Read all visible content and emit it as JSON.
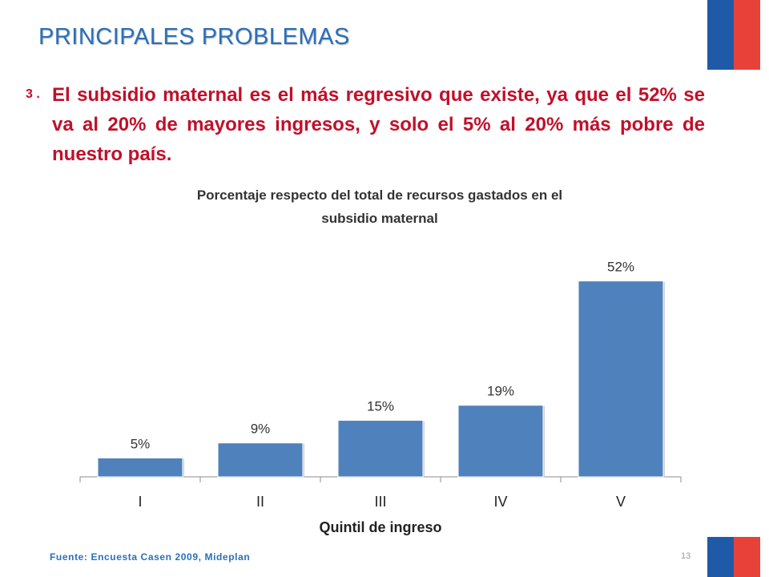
{
  "slide": {
    "title": "PRINCIPALES PROBLEMAS",
    "point_number": "3 .",
    "point_text": "El subsidio maternal es el más regresivo que existe, ya que el 52% se va al 20% de mayores ingresos, y solo el 5% al 20% más pobre de nuestro país.",
    "source": "Fuente: Encuesta Casen 2009, Mideplan",
    "page_number": "13"
  },
  "colors": {
    "title": "#2a70b8",
    "emphasis": "#c0102a",
    "bar": "#4f81bd",
    "flag_blue": "#1f5aa8",
    "flag_red": "#e8413a"
  },
  "chart_data": {
    "type": "bar",
    "title_line1": "Porcentaje respecto del total de recursos gastados en el",
    "title_line2": "subsidio maternal",
    "xlabel": "Quintil de ingreso",
    "ylabel": "",
    "categories": [
      "I",
      "II",
      "III",
      "IV",
      "V"
    ],
    "values": [
      5,
      9,
      15,
      19,
      52
    ],
    "data_labels": [
      "5%",
      "9%",
      "15%",
      "19%",
      "52%"
    ],
    "ylim": [
      0,
      55
    ],
    "grid": false,
    "legend": "none"
  }
}
